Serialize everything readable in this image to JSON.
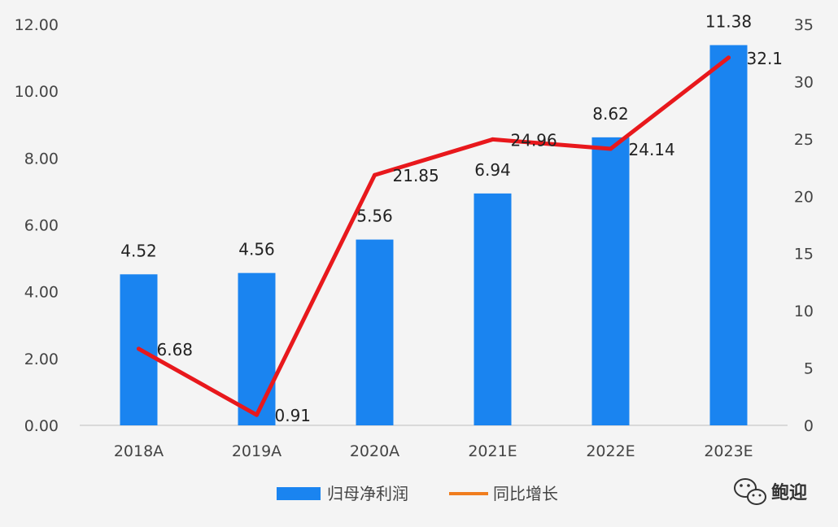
{
  "chart_data": {
    "type": "bar",
    "categories": [
      "2018A",
      "2019A",
      "2020A",
      "2021E",
      "2022E",
      "2023E"
    ],
    "series": [
      {
        "name": "归母净利润",
        "type": "bar",
        "axis": "left",
        "color": "#1a84f0",
        "values": [
          4.52,
          4.56,
          5.56,
          6.94,
          8.62,
          11.38
        ],
        "labels": [
          "4.52",
          "4.56",
          "5.56",
          "6.94",
          "8.62",
          "11.38"
        ]
      },
      {
        "name": "同比增长",
        "type": "line",
        "axis": "right",
        "color": "#e8181c",
        "legend_color": "#f07d1e",
        "values": [
          6.68,
          0.91,
          21.85,
          24.96,
          24.14,
          32.1
        ],
        "labels": [
          "6.68",
          "0.91",
          "21.85",
          "24.96",
          "24.14",
          "32.1"
        ]
      }
    ],
    "y_left": {
      "ylim": [
        0,
        12
      ],
      "ticks": [
        "0.00",
        "2.00",
        "4.00",
        "6.00",
        "8.00",
        "10.00",
        "12.00"
      ]
    },
    "y_right": {
      "ylim": [
        0,
        35
      ],
      "ticks": [
        "0",
        "5",
        "10",
        "15",
        "20",
        "25",
        "30",
        "35"
      ]
    },
    "grid": false,
    "legend_position": "bottom-center"
  },
  "watermark": {
    "text": "鲍迎",
    "icon": "wechat-icon"
  }
}
